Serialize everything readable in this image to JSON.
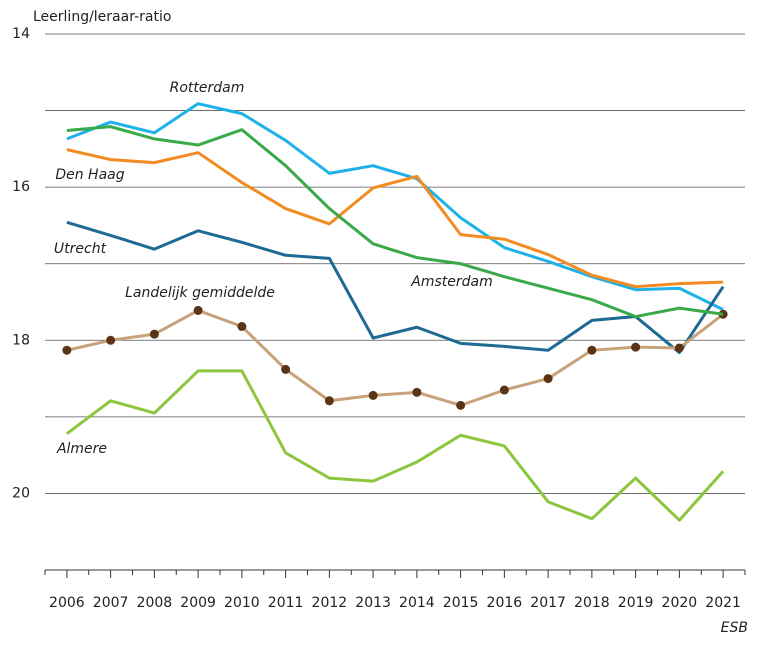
{
  "chart_data": {
    "type": "line",
    "y_axis_title": "Leerling/leraar-ratio",
    "source": "ESB",
    "categories": [
      "2006",
      "2007",
      "2008",
      "2009",
      "2010",
      "2011",
      "2012",
      "2013",
      "2014",
      "2015",
      "2016",
      "2017",
      "2018",
      "2019",
      "2020",
      "2021"
    ],
    "ylim": [
      14,
      21
    ],
    "y_inverted": true,
    "yticks": [
      14,
      16,
      18,
      20
    ],
    "minor_grid": [
      15,
      17,
      19
    ],
    "grid": true,
    "series": [
      {
        "name": "Rotterdam",
        "color": "#1fb2e8",
        "values": [
          15.37,
          15.15,
          15.29,
          14.91,
          15.04,
          15.39,
          15.82,
          15.72,
          15.89,
          16.4,
          16.79,
          16.97,
          17.17,
          17.34,
          17.32,
          17.6
        ]
      },
      {
        "name": "Den Haag",
        "color": "#f28c22",
        "values": [
          15.51,
          15.64,
          15.68,
          15.55,
          15.94,
          16.28,
          16.48,
          16.01,
          15.86,
          16.62,
          16.68,
          16.88,
          17.15,
          17.3,
          17.26,
          17.24
        ]
      },
      {
        "name": "Utrecht",
        "color": "#1e6a93",
        "values": [
          16.46,
          16.63,
          16.81,
          16.57,
          16.72,
          16.89,
          16.93,
          17.97,
          17.83,
          18.04,
          18.08,
          18.13,
          17.74,
          17.69,
          18.16,
          17.3
        ]
      },
      {
        "name": "Landelijk gemiddelde",
        "color": "#c8a27a",
        "marker_color": "#5a3414",
        "markers": true,
        "values": [
          18.13,
          18.0,
          17.92,
          17.61,
          17.82,
          18.38,
          18.79,
          18.72,
          18.68,
          18.85,
          18.65,
          18.5,
          18.13,
          18.09,
          18.1,
          17.66
        ]
      },
      {
        "name": "Amsterdam",
        "color": "#3aaa48",
        "values": [
          15.26,
          15.21,
          15.37,
          15.45,
          15.25,
          15.72,
          16.28,
          16.74,
          16.92,
          17.0,
          17.17,
          17.32,
          17.47,
          17.69,
          17.58,
          17.66
        ]
      },
      {
        "name": "Almere",
        "color": "#8cc63f",
        "values": [
          19.22,
          18.79,
          18.95,
          18.4,
          18.4,
          19.47,
          19.8,
          19.84,
          19.59,
          19.24,
          19.38,
          20.11,
          20.33,
          19.8,
          20.35,
          19.71
        ]
      }
    ]
  }
}
